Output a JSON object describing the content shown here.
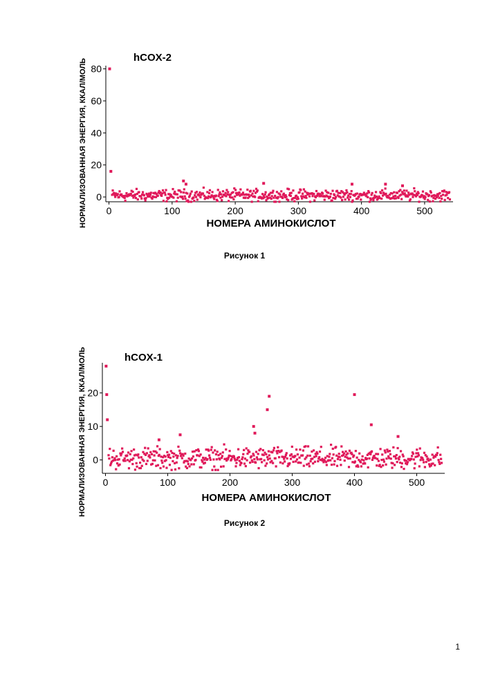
{
  "chart_data": [
    {
      "type": "scatter",
      "title": "hCOX-2",
      "xlabel": "НОМЕРА АМИНОКИСЛОТ",
      "ylabel": "НОРМАЛИЗОВАННАЯ ЭНЕРГИЯ, ККАЛ/МОЛЬ",
      "xlim": [
        -5,
        545
      ],
      "ylim": [
        -3,
        82
      ],
      "x_ticks": [
        0,
        100,
        200,
        300,
        400,
        500
      ],
      "y_ticks": [
        0,
        20,
        40,
        60,
        80
      ],
      "marker_color": "#e0195a",
      "grid": false,
      "legend": "none",
      "highlight_points": [
        {
          "x": 1,
          "y": 80
        },
        {
          "x": 3,
          "y": 16
        },
        {
          "x": 118,
          "y": 10
        },
        {
          "x": 122,
          "y": 8
        },
        {
          "x": 245,
          "y": 8.5
        },
        {
          "x": 385,
          "y": 8
        },
        {
          "x": 438,
          "y": 8
        },
        {
          "x": 465,
          "y": 7
        }
      ],
      "baseline": {
        "x_start": 5,
        "x_end": 540,
        "y_min": -3,
        "y_max": 6,
        "approx_points": 540
      }
    },
    {
      "type": "scatter",
      "title": "hCOX-1",
      "xlabel": "НОМЕРА АМИНОКИСЛОТ",
      "ylabel": "НОРМАЛИЗОВАННАЯ ЭНЕРГИЯ, ККАЛ/МОЛЬ",
      "xlim": [
        -5,
        545
      ],
      "ylim": [
        -4,
        29
      ],
      "x_ticks": [
        0,
        100,
        200,
        300,
        400,
        500
      ],
      "y_ticks": [
        0,
        10,
        20
      ],
      "marker_color": "#e0195a",
      "grid": false,
      "legend": "none",
      "highlight_points": [
        {
          "x": 1,
          "y": 28
        },
        {
          "x": 2,
          "y": 19.5
        },
        {
          "x": 3,
          "y": 12
        },
        {
          "x": 238,
          "y": 10
        },
        {
          "x": 240,
          "y": 8
        },
        {
          "x": 260,
          "y": 15
        },
        {
          "x": 263,
          "y": 19
        },
        {
          "x": 400,
          "y": 19.5
        },
        {
          "x": 427,
          "y": 10.5
        },
        {
          "x": 86,
          "y": 6
        },
        {
          "x": 120,
          "y": 7.5
        },
        {
          "x": 470,
          "y": 7
        }
      ],
      "baseline": {
        "x_start": 5,
        "x_end": 540,
        "y_min": -3,
        "y_max": 5,
        "approx_points": 540
      }
    }
  ],
  "captions": [
    "Рисунок 1",
    "Рисунок 2"
  ],
  "page_number": "1"
}
